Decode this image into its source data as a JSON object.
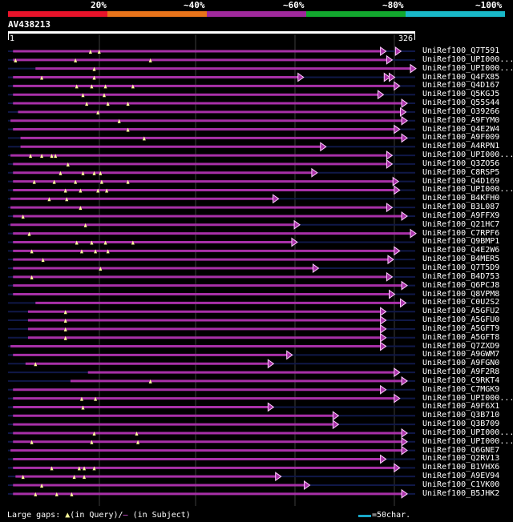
{
  "scale": {
    "segments": [
      {
        "label": "20%",
        "color": "#e8132a"
      },
      {
        "label": "~40%",
        "color": "#e8731a"
      },
      {
        "label": "~60%",
        "color": "#a0299c"
      },
      {
        "label": "~80%",
        "color": "#12a82e"
      },
      {
        "label": "~100%",
        "color": "#19b8c8"
      }
    ]
  },
  "query": {
    "name": "AV438213",
    "start": "1",
    "end": "326",
    "length": 326
  },
  "colors": {
    "hit": "#a830a8",
    "background_line": "#101848",
    "grid": "#3c3c3c",
    "query_bar": "#ffffff",
    "gap_marker": "#ffff99",
    "arrow": "#ffccff"
  },
  "hits": [
    {
      "name": "UniRef100_Q7T591",
      "start": 4,
      "end": 302,
      "end_marks": [
        302,
        314
      ],
      "gaps": [
        66,
        73
      ]
    },
    {
      "name": "UniRef100_UPI000...",
      "start": 4,
      "end": 307,
      "gaps": [
        6,
        54,
        114
      ]
    },
    {
      "name": "UniRef100_UPI000...",
      "start": 22,
      "end": 326,
      "gaps": [
        69
      ]
    },
    {
      "name": "UniRef100_Q4FX85",
      "start": 4,
      "end": 236,
      "end_marks": [
        236,
        305,
        309
      ],
      "gaps": [
        27,
        69
      ]
    },
    {
      "name": "UniRef100_Q4D167",
      "start": 4,
      "end": 313,
      "gaps": [
        55,
        67,
        78,
        100
      ]
    },
    {
      "name": "UniRef100_Q5KGJ5",
      "start": 4,
      "end": 300,
      "gaps": [
        60,
        77
      ]
    },
    {
      "name": "UniRef100_Q55S44",
      "start": 4,
      "end": 319,
      "gaps": [
        63,
        80,
        96
      ]
    },
    {
      "name": "UniRef100_O39266",
      "start": 8,
      "end": 318,
      "gaps": [
        72
      ]
    },
    {
      "name": "UniRef100_A9FYM0",
      "start": 2,
      "end": 319,
      "gaps": [
        89
      ]
    },
    {
      "name": "UniRef100_Q4E2W4",
      "start": 4,
      "end": 313,
      "gaps": [
        96
      ]
    },
    {
      "name": "UniRef100_A9F009",
      "start": 10,
      "end": 319,
      "gaps": [
        109
      ]
    },
    {
      "name": "UniRef100_A4RPN1",
      "start": 10,
      "end": 254,
      "gaps": []
    },
    {
      "name": "UniRef100_UPI000...",
      "start": 2,
      "end": 307,
      "gaps": [
        18,
        27,
        35,
        38
      ]
    },
    {
      "name": "UniRef100_Q3ZO56",
      "start": 4,
      "end": 307,
      "gaps": [
        48
      ]
    },
    {
      "name": "UniRef100_C8RSP5",
      "start": 4,
      "end": 247,
      "gaps": [
        42,
        60,
        69,
        74
      ]
    },
    {
      "name": "UniRef100_Q4D169",
      "start": 4,
      "end": 312,
      "gaps": [
        21,
        37,
        54,
        75,
        96
      ]
    },
    {
      "name": "UniRef100_UPI000...",
      "start": 4,
      "end": 313,
      "gaps": [
        46,
        58,
        72,
        79
      ]
    },
    {
      "name": "UniRef100_B4KFH0",
      "start": 2,
      "end": 216,
      "gaps": [
        33,
        47
      ]
    },
    {
      "name": "UniRef100_B3L087",
      "start": 2,
      "end": 307,
      "gaps": [
        58
      ]
    },
    {
      "name": "UniRef100_A9FFX9",
      "start": 4,
      "end": 319,
      "gaps": [
        12
      ]
    },
    {
      "name": "UniRef100_Q21HC7",
      "start": 2,
      "end": 233,
      "gaps": [
        62
      ]
    },
    {
      "name": "UniRef100_C7RPF6",
      "start": 4,
      "end": 326,
      "gaps": [
        17
      ]
    },
    {
      "name": "UniRef100_Q9BMP1",
      "start": 4,
      "end": 231,
      "gaps": [
        55,
        67,
        78,
        100
      ]
    },
    {
      "name": "UniRef100_Q4E2W6",
      "start": 4,
      "end": 313,
      "gaps": [
        19,
        59,
        70,
        80
      ]
    },
    {
      "name": "UniRef100_B4MER5",
      "start": 4,
      "end": 308,
      "gaps": [
        28
      ]
    },
    {
      "name": "UniRef100_Q7T5D9",
      "start": 4,
      "end": 248,
      "gaps": [
        74
      ]
    },
    {
      "name": "UniRef100_B4D753",
      "start": 4,
      "end": 307,
      "gaps": [
        19
      ]
    },
    {
      "name": "UniRef100_Q6PCJ8",
      "start": 4,
      "end": 319,
      "gaps": []
    },
    {
      "name": "UniRef100_Q8VPM8",
      "start": 4,
      "end": 309,
      "gaps": []
    },
    {
      "name": "UniRef100_C0U2S2",
      "start": 22,
      "end": 318,
      "gaps": []
    },
    {
      "name": "UniRef100_A5GFU2",
      "start": 16,
      "end": 302,
      "gaps": [
        46
      ]
    },
    {
      "name": "UniRef100_A5GFU0",
      "start": 16,
      "end": 302,
      "gaps": [
        46
      ]
    },
    {
      "name": "UniRef100_A5GFT9",
      "start": 16,
      "end": 302,
      "gaps": [
        46
      ]
    },
    {
      "name": "UniRef100_A5GFT8",
      "start": 16,
      "end": 302,
      "gaps": [
        46
      ]
    },
    {
      "name": "UniRef100_Q7ZXD9",
      "start": 2,
      "end": 302,
      "gaps": []
    },
    {
      "name": "UniRef100_A9GWM7",
      "start": 4,
      "end": 227,
      "gaps": []
    },
    {
      "name": "UniRef100_A9FGN0",
      "start": 14,
      "end": 212,
      "gaps": [
        22
      ]
    },
    {
      "name": "UniRef100_A9F2R8",
      "start": 64,
      "end": 313,
      "gaps": []
    },
    {
      "name": "UniRef100_C9RKT4",
      "start": 50,
      "end": 319,
      "gaps": [
        114
      ]
    },
    {
      "name": "UniRef100_C7MGK9",
      "start": 4,
      "end": 302,
      "gaps": []
    },
    {
      "name": "UniRef100_UPI000...",
      "start": 4,
      "end": 313,
      "gaps": [
        59,
        70
      ]
    },
    {
      "name": "UniRef100_A9F6X1",
      "start": 4,
      "end": 212,
      "gaps": [
        60
      ]
    },
    {
      "name": "UniRef100_Q3B710",
      "start": 4,
      "end": 264,
      "gaps": []
    },
    {
      "name": "UniRef100_Q3B709",
      "start": 4,
      "end": 264,
      "gaps": []
    },
    {
      "name": "UniRef100_UPI000...",
      "start": 4,
      "end": 319,
      "gaps": [
        69,
        103
      ]
    },
    {
      "name": "UniRef100_UPI000...",
      "start": 4,
      "end": 319,
      "gaps": [
        19,
        67,
        104
      ]
    },
    {
      "name": "UniRef100_Q6GNE7",
      "start": 2,
      "end": 319,
      "gaps": []
    },
    {
      "name": "UniRef100_Q2RV13",
      "start": 4,
      "end": 302,
      "gaps": []
    },
    {
      "name": "UniRef100_B1VHX6",
      "start": 4,
      "end": 313,
      "gaps": [
        35,
        57,
        61,
        69
      ]
    },
    {
      "name": "UniRef100_A9EV94",
      "start": 6,
      "end": 218,
      "gaps": [
        12,
        53,
        61
      ]
    },
    {
      "name": "UniRef100_C1VK00",
      "start": 4,
      "end": 241,
      "gaps": [
        27
      ]
    },
    {
      "name": "UniRef100_B5JHK2",
      "start": 4,
      "end": 319,
      "gaps": [
        22,
        39,
        51
      ]
    }
  ],
  "legend": {
    "prefix": "Large gaps:",
    "query_marker": "▲",
    "query_text": "(in Query)/",
    "subject_marker": "—",
    "subject_text": " (in Subject)",
    "char_scale": "=50char."
  }
}
